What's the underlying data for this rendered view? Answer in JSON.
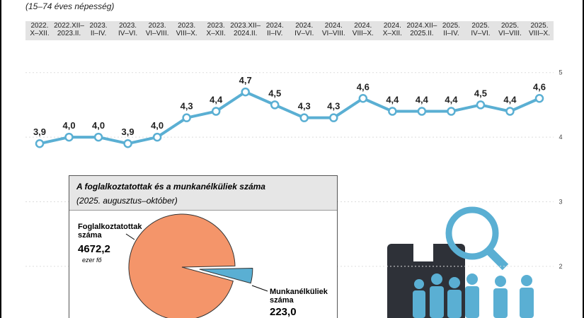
{
  "chart_data": [
    {
      "type": "line",
      "subtitle": "(15–74 éves népesség)",
      "categories": [
        "2022.\nX–XII.",
        "2022.XII–\n2023.II.",
        "2023.\nII–IV.",
        "2023.\nIV–VI.",
        "2023.\nVI–VIII.",
        "2023.\nVIII–X.",
        "2023.\nX–XII.",
        "2023.XII–\n2024.II.",
        "2024.\nII–IV.",
        "2024.\nIV–VI.",
        "2024.\nVI–VIII.",
        "2024.\nVIII–X.",
        "2024.\nX–XII.",
        "2024.XII–\n2025.II.",
        "2025.\nII–IV.",
        "2025.\nIV–VI.",
        "2025.\nVI–VIII.",
        "2025.\nVIII–X."
      ],
      "values": [
        3.9,
        4.0,
        4.0,
        3.9,
        4.0,
        4.3,
        4.4,
        4.7,
        4.5,
        4.3,
        4.3,
        4.6,
        4.4,
        4.4,
        4.4,
        4.5,
        4.4,
        4.6
      ],
      "value_labels": [
        "3,9",
        "4,0",
        "4,0",
        "3,9",
        "4,0",
        "4,3",
        "4,4",
        "4,7",
        "4,5",
        "4,3",
        "4,3",
        "4,6",
        "4,4",
        "4,4",
        "4,4",
        "4,5",
        "4,4",
        "4,6"
      ],
      "color": "#5aafd3",
      "ylim": [
        1.2,
        5.5
      ],
      "yticks": [
        2,
        3,
        4,
        5
      ],
      "grid": true
    },
    {
      "type": "pie",
      "title": "A foglalkoztatottak és a munkanélküliek száma",
      "subtitle": "(2025. augusztus–október)",
      "categories": [
        "Foglalkoztatottak száma",
        "Munkanélküliek száma"
      ],
      "values": [
        4672.2,
        223.0
      ],
      "value_labels": [
        "4672,2",
        "223,0"
      ],
      "unit": "ezer fő",
      "colors": [
        "#f4956a",
        "#5aafd3"
      ]
    }
  ]
}
